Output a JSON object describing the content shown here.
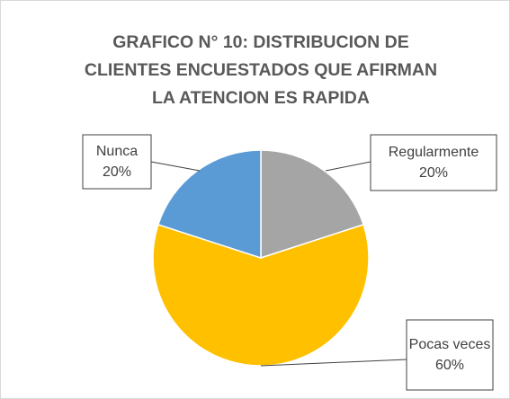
{
  "chart_data": {
    "type": "pie",
    "title": "GRAFICO N° 10: DISTRIBUCION DE CLIENTES ENCUESTADOS QUE AFIRMAN LA ATENCION ES RAPIDA",
    "categories": [
      "Regularmente",
      "Pocas veces",
      "Nunca"
    ],
    "values": [
      20,
      60,
      20
    ],
    "value_labels": [
      "20%",
      "60%",
      "20%"
    ],
    "colors": [
      "#a5a5a5",
      "#ffc000",
      "#5b9bd5"
    ]
  }
}
